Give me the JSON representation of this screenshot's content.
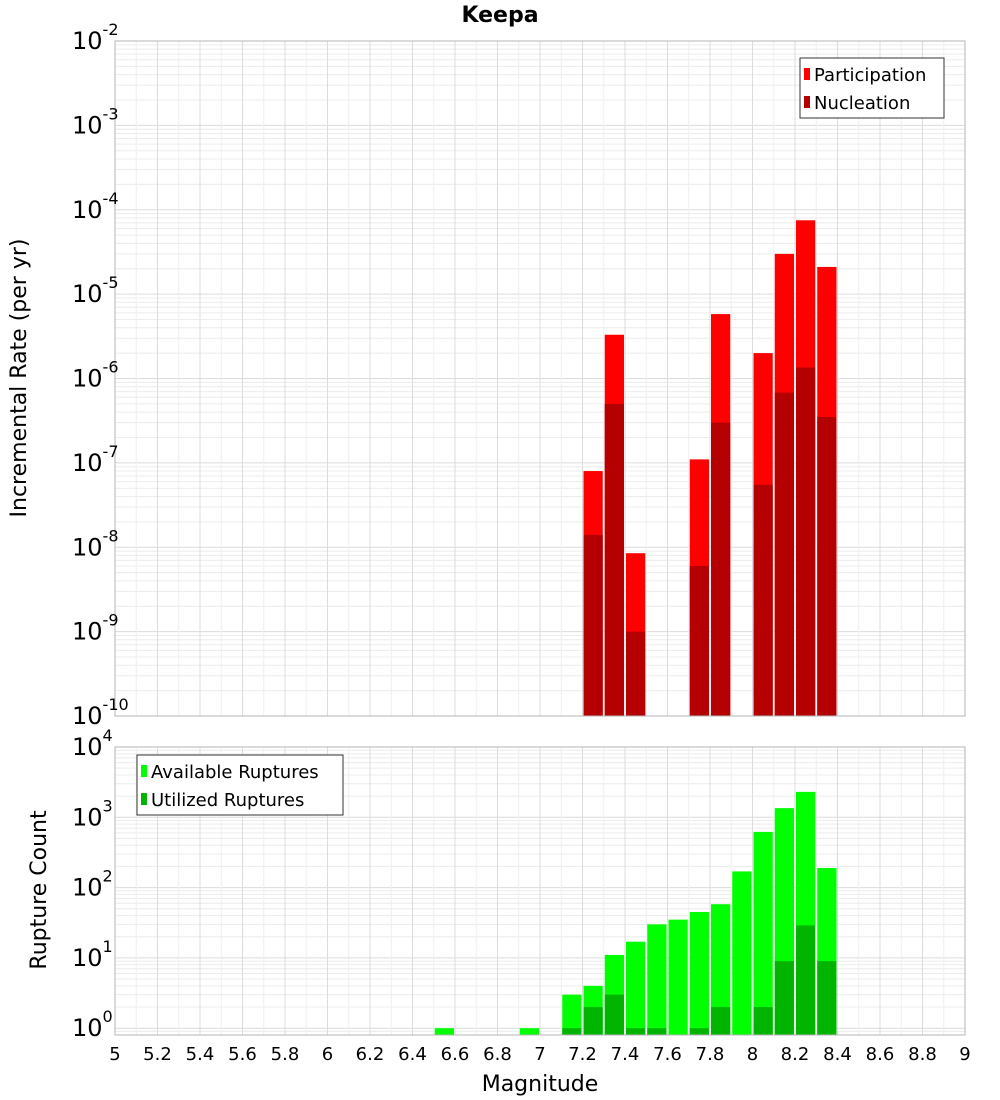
{
  "chart_data": [
    {
      "type": "bar",
      "title": "Keepa",
      "xlabel": "",
      "ylabel": "Incremental Rate (per yr)",
      "yscale": "log",
      "xlim": [
        5,
        9
      ],
      "ylim": [
        1e-10,
        0.01
      ],
      "y_tick_labels": [
        {
          "base": "10",
          "exp": "-10"
        },
        {
          "base": "10",
          "exp": "-9"
        },
        {
          "base": "10",
          "exp": "-8"
        },
        {
          "base": "10",
          "exp": "-7"
        },
        {
          "base": "10",
          "exp": "-6"
        },
        {
          "base": "10",
          "exp": "-5"
        },
        {
          "base": "10",
          "exp": "-4"
        },
        {
          "base": "10",
          "exp": "-3"
        },
        {
          "base": "10",
          "exp": "-2"
        }
      ],
      "legend": {
        "position": "top-right",
        "entries": [
          "Participation",
          "Nucleation"
        ]
      },
      "bar_width": 0.1,
      "series": [
        {
          "name": "Participation",
          "color": "#ff0000",
          "x": [
            7.25,
            7.35,
            7.45,
            7.75,
            7.85,
            8.05,
            8.15,
            8.25,
            8.35
          ],
          "values": [
            8e-08,
            3.3e-06,
            8.5e-09,
            1.1e-07,
            5.8e-06,
            2e-06,
            3e-05,
            7.5e-05,
            2.1e-05
          ]
        },
        {
          "name": "Nucleation",
          "color": "#b40000",
          "x": [
            7.25,
            7.35,
            7.45,
            7.75,
            7.85,
            8.05,
            8.15,
            8.25,
            8.35
          ],
          "values": [
            1.4e-08,
            5e-07,
            1e-09,
            6e-09,
            3e-07,
            5.5e-08,
            6.8e-07,
            1.35e-06,
            3.5e-07
          ]
        }
      ]
    },
    {
      "type": "bar",
      "title": "",
      "xlabel": "Magnitude",
      "ylabel": "Rupture Count",
      "yscale": "log",
      "xlim": [
        5,
        9
      ],
      "ylim": [
        0.8,
        10000
      ],
      "y_tick_labels": [
        {
          "base": "10",
          "exp": "0"
        },
        {
          "base": "10",
          "exp": "1"
        },
        {
          "base": "10",
          "exp": "2"
        },
        {
          "base": "10",
          "exp": "3"
        },
        {
          "base": "10",
          "exp": "4"
        }
      ],
      "x_tick_labels": [
        "5",
        "5.2",
        "5.4",
        "5.6",
        "5.8",
        "6",
        "6.2",
        "6.4",
        "6.6",
        "6.8",
        "7",
        "7.2",
        "7.4",
        "7.6",
        "7.8",
        "8",
        "8.2",
        "8.4",
        "8.6",
        "8.8",
        "9"
      ],
      "legend": {
        "position": "top-left",
        "entries": [
          "Available Ruptures",
          "Utilized Ruptures"
        ]
      },
      "bar_width": 0.1,
      "series": [
        {
          "name": "Available Ruptures",
          "color": "#00ff00",
          "x": [
            6.55,
            6.95,
            7.15,
            7.25,
            7.35,
            7.45,
            7.55,
            7.65,
            7.75,
            7.85,
            7.95,
            8.05,
            8.15,
            8.25,
            8.35
          ],
          "values": [
            1,
            1,
            3,
            4,
            11,
            17,
            30,
            35,
            45,
            58,
            170,
            620,
            1350,
            2300,
            190
          ]
        },
        {
          "name": "Utilized Ruptures",
          "color": "#00b400",
          "x": [
            7.15,
            7.25,
            7.35,
            7.45,
            7.55,
            7.75,
            7.85,
            8.05,
            8.15,
            8.25,
            8.35
          ],
          "values": [
            1,
            2,
            3,
            1,
            1,
            1,
            2,
            2,
            9,
            29,
            9
          ]
        }
      ]
    }
  ]
}
